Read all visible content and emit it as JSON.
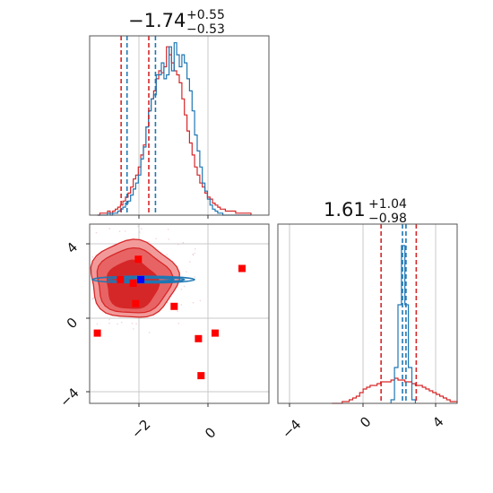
{
  "colors": {
    "blue": "#1f77b4",
    "red": "#d62728",
    "marker_red": "#ff0000",
    "marker_blue": "#0000ff",
    "contour_fill_light": "#f29a9a",
    "contour_fill_mid": "#e86464",
    "contour_fill_dark": "#d62728"
  },
  "chart_data": [
    {
      "panel": "top-left",
      "type": "histogram",
      "title": {
        "main": "−1.74",
        "sup": "+0.55",
        "sub": "−0.53"
      },
      "xlim": [
        -3.5,
        3.5
      ],
      "bin_width": 0.1,
      "series": [
        {
          "color": "#d62728",
          "x_start": -3.2,
          "counts": [
            0,
            1,
            1,
            1,
            2,
            1,
            2,
            3,
            4,
            5,
            7,
            9,
            11,
            14,
            18,
            20,
            24,
            30,
            35,
            44,
            52,
            58,
            62,
            68,
            72,
            71,
            74,
            84,
            80,
            76,
            72,
            70,
            66,
            58,
            50,
            42,
            36,
            30,
            24,
            20,
            16,
            14,
            11,
            9,
            8,
            6,
            5,
            4,
            3,
            3,
            2,
            2,
            2,
            2,
            1,
            1,
            1,
            1,
            1,
            1
          ]
        },
        {
          "color": "#1f77b4",
          "x_start": -3.2,
          "counts": [
            0,
            0,
            0,
            0,
            1,
            0,
            1,
            1,
            2,
            3,
            4,
            6,
            7,
            10,
            13,
            16,
            20,
            28,
            34,
            44,
            52,
            58,
            60,
            70,
            70,
            76,
            68,
            70,
            84,
            72,
            86,
            80,
            74,
            80,
            76,
            68,
            62,
            52,
            40,
            32,
            24,
            16,
            12,
            8,
            5,
            3,
            2,
            1,
            1,
            0,
            0,
            0,
            0,
            0,
            0,
            0,
            0,
            0,
            0,
            0
          ]
        }
      ],
      "vlines": [
        {
          "x": -2.27,
          "color": "#d62728"
        },
        {
          "x": -1.19,
          "color": "#d62728"
        },
        {
          "x": -2.04,
          "color": "#1f77b4"
        },
        {
          "x": -0.93,
          "color": "#1f77b4"
        }
      ],
      "grid": true
    },
    {
      "panel": "bottom-left",
      "type": "scatter-contour",
      "xlim": [
        -3.5,
        3.5
      ],
      "ylim": [
        -4.7,
        5.0
      ],
      "xticks": [
        -2,
        0
      ],
      "xtick_labels": [
        "−2",
        "0"
      ],
      "yticks": [
        -4,
        0,
        4
      ],
      "ytick_labels": [
        "−4",
        "0",
        "4"
      ],
      "contours": [
        {
          "level": "outer",
          "center": [
            -1.8,
            2.0
          ],
          "radius": [
            1.7,
            2.1
          ]
        },
        {
          "level": "middle",
          "center": [
            -1.8,
            1.9
          ],
          "radius": [
            1.45,
            1.75
          ]
        },
        {
          "level": "inner",
          "center": [
            -1.85,
            1.7
          ],
          "radius": [
            1.0,
            1.3
          ]
        }
      ],
      "blue_ellipses": [
        {
          "center": [
            -1.4,
            2.0
          ],
          "radius": [
            2.0,
            0.18
          ]
        },
        {
          "center": [
            -1.3,
            2.0
          ],
          "radius": [
            1.5,
            0.12
          ]
        },
        {
          "center": [
            -1.2,
            2.0
          ],
          "radius": [
            1.0,
            0.08
          ]
        }
      ],
      "red_markers": [
        [
          -1.6,
          3.1
        ],
        [
          -1.8,
          1.8
        ],
        [
          -2.3,
          2.0
        ],
        [
          -1.7,
          0.7
        ],
        [
          -3.2,
          -0.9
        ],
        [
          -0.2,
          0.55
        ],
        [
          0.75,
          -1.2
        ],
        [
          1.4,
          -0.9
        ],
        [
          0.85,
          -3.2
        ],
        [
          2.45,
          2.6
        ]
      ],
      "blue_marker": [
        -1.5,
        2.0
      ],
      "grid": true
    },
    {
      "panel": "bottom-right",
      "type": "histogram",
      "title": {
        "main": "1.61",
        "sup": "+1.04",
        "sub": "−0.98"
      },
      "xlim": [
        -5.3,
        5.0
      ],
      "xticks": [
        -4,
        0,
        4
      ],
      "xtick_labels": [
        "−4",
        "0",
        "4"
      ],
      "bin_width": 0.2,
      "series": [
        {
          "color": "#d62728",
          "x_start": -2.2,
          "counts": [
            0,
            0,
            0,
            1,
            1,
            2,
            3,
            4,
            6,
            8,
            9,
            10,
            10,
            11,
            12,
            12,
            12,
            13,
            14,
            13,
            13,
            12,
            12,
            11,
            10,
            10,
            9,
            8,
            7,
            6,
            5,
            4,
            3,
            2,
            1,
            1
          ]
        },
        {
          "color": "#1f77b4",
          "x_start": 1.2,
          "counts": [
            2,
            20,
            55,
            88,
            55,
            20,
            2
          ]
        }
      ],
      "ylim_max": 100,
      "vlines": [
        {
          "x": 0.63,
          "color": "#d62728"
        },
        {
          "x": 2.65,
          "color": "#d62728"
        },
        {
          "x": 1.86,
          "color": "#1f77b4"
        },
        {
          "x": 2.06,
          "color": "#1f77b4"
        }
      ],
      "grid": true
    }
  ]
}
